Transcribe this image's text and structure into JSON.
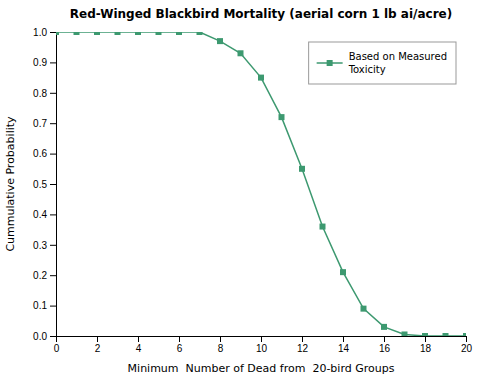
{
  "chart_data": {
    "type": "line",
    "title": "Red-Winged Blackbird Mortality (aerial corn 1 lb ai/acre)",
    "xlabel": "Minimum  Number of Dead from  20-bird Groups",
    "ylabel": "Cummulative Probability",
    "x": [
      0,
      1,
      2,
      3,
      4,
      5,
      6,
      7,
      8,
      9,
      10,
      11,
      12,
      13,
      14,
      15,
      16,
      17,
      18,
      19,
      20
    ],
    "series": [
      {
        "name": "Based on Measured\nToxicity",
        "color": "#3d9970",
        "marker": "square",
        "values": [
          1.0,
          1.0,
          1.0,
          1.0,
          1.0,
          1.0,
          1.0,
          1.0,
          0.97,
          0.93,
          0.85,
          0.72,
          0.55,
          0.36,
          0.21,
          0.09,
          0.03,
          0.005,
          0.0,
          0.0,
          0.0
        ]
      }
    ],
    "xlim": [
      0,
      20
    ],
    "ylim": [
      0,
      1.0
    ],
    "xticks": [
      0,
      2,
      4,
      6,
      8,
      10,
      12,
      14,
      16,
      18,
      20
    ],
    "yticks": [
      {
        "value": 0.0,
        "label": "0.0"
      },
      0.1,
      0.2,
      0.3,
      0.4,
      0.5,
      0.6,
      0.7,
      0.8,
      0.9,
      {
        "value": 1.0,
        "label": "1.0"
      }
    ],
    "grid": false,
    "legend": "upper right"
  }
}
